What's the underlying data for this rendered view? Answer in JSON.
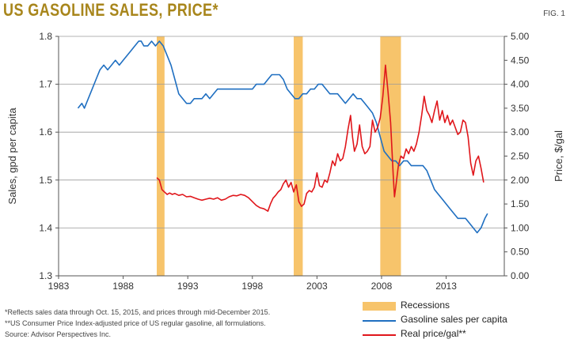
{
  "header": {
    "title": "US GASOLINE SALES, PRICE*",
    "fig_label": "FIG. 1"
  },
  "chart_data": {
    "type": "line",
    "title": "US GASOLINE SALES, PRICE*",
    "xlabel": "",
    "ylabel": "Sales, gpd per capita",
    "y2label": "Price, $/gal",
    "xlim": [
      1983,
      2017.5
    ],
    "ylim": [
      1.3,
      1.8
    ],
    "y2lim": [
      0,
      5
    ],
    "x_ticks": [
      1983,
      1988,
      1993,
      1998,
      2003,
      2008,
      2013
    ],
    "y_ticks": [
      "1.3",
      "1.4",
      "1.5",
      "1.6",
      "1.7",
      "1.8"
    ],
    "y2_ticks": [
      "0.00",
      "0.50",
      "1.00",
      "1.50",
      "2.00",
      "2.50",
      "3.00",
      "3.50",
      "4.00",
      "4.50",
      "5.00"
    ],
    "grid": true,
    "recessions": [
      [
        1990.6,
        1991.2
      ],
      [
        2001.2,
        2001.9
      ],
      [
        2007.9,
        2009.5
      ]
    ],
    "series": [
      {
        "name": "Gasoline sales per capita",
        "axis": "left",
        "color": "#1f6fc1",
        "x": [
          1984.5,
          1984.8,
          1985.0,
          1985.3,
          1985.6,
          1985.9,
          1986.2,
          1986.5,
          1986.8,
          1987.1,
          1987.4,
          1987.7,
          1988.0,
          1988.3,
          1988.6,
          1988.9,
          1989.2,
          1989.4,
          1989.6,
          1989.9,
          1990.2,
          1990.5,
          1990.8,
          1991.1,
          1991.4,
          1991.7,
          1992.0,
          1992.3,
          1992.6,
          1992.9,
          1993.2,
          1993.5,
          1993.8,
          1994.1,
          1994.4,
          1994.7,
          1995.0,
          1995.3,
          1995.6,
          1995.9,
          1996.2,
          1996.5,
          1996.8,
          1997.1,
          1997.4,
          1997.7,
          1998.0,
          1998.3,
          1998.6,
          1998.9,
          1999.2,
          1999.5,
          1999.8,
          2000.1,
          2000.4,
          2000.7,
          2001.0,
          2001.3,
          2001.6,
          2001.9,
          2002.2,
          2002.5,
          2002.8,
          2003.1,
          2003.4,
          2003.7,
          2004.0,
          2004.3,
          2004.6,
          2004.9,
          2005.2,
          2005.5,
          2005.8,
          2006.1,
          2006.4,
          2006.7,
          2007.0,
          2007.3,
          2007.6,
          2007.9,
          2008.2,
          2008.5,
          2008.8,
          2009.1,
          2009.4,
          2009.7,
          2010.0,
          2010.3,
          2010.6,
          2010.9,
          2011.2,
          2011.5,
          2011.8,
          2012.1,
          2012.4,
          2012.7,
          2013.0,
          2013.3,
          2013.6,
          2013.9,
          2014.2,
          2014.5,
          2014.8,
          2015.1,
          2015.4,
          2015.7,
          2016.0,
          2016.2
        ],
        "values": [
          1.65,
          1.66,
          1.65,
          1.67,
          1.69,
          1.71,
          1.73,
          1.74,
          1.73,
          1.74,
          1.75,
          1.74,
          1.75,
          1.76,
          1.77,
          1.78,
          1.79,
          1.79,
          1.78,
          1.78,
          1.79,
          1.78,
          1.79,
          1.78,
          1.76,
          1.74,
          1.71,
          1.68,
          1.67,
          1.66,
          1.66,
          1.67,
          1.67,
          1.67,
          1.68,
          1.67,
          1.68,
          1.69,
          1.69,
          1.69,
          1.69,
          1.69,
          1.69,
          1.69,
          1.69,
          1.69,
          1.69,
          1.7,
          1.7,
          1.7,
          1.71,
          1.72,
          1.72,
          1.72,
          1.71,
          1.69,
          1.68,
          1.67,
          1.67,
          1.68,
          1.68,
          1.69,
          1.69,
          1.7,
          1.7,
          1.69,
          1.68,
          1.68,
          1.68,
          1.67,
          1.66,
          1.67,
          1.68,
          1.67,
          1.67,
          1.66,
          1.65,
          1.64,
          1.62,
          1.59,
          1.56,
          1.55,
          1.54,
          1.54,
          1.53,
          1.54,
          1.54,
          1.53,
          1.53,
          1.53,
          1.53,
          1.52,
          1.5,
          1.48,
          1.47,
          1.46,
          1.45,
          1.44,
          1.43,
          1.42,
          1.42,
          1.42,
          1.41,
          1.4,
          1.39,
          1.4,
          1.42,
          1.43
        ]
      },
      {
        "name": "Real price/gal**",
        "axis": "right",
        "color": "#e0161b",
        "x": [
          1990.6,
          1990.8,
          1991.0,
          1991.2,
          1991.4,
          1991.6,
          1991.8,
          1992.0,
          1992.3,
          1992.6,
          1992.9,
          1993.2,
          1993.5,
          1993.8,
          1994.1,
          1994.4,
          1994.7,
          1995.0,
          1995.3,
          1995.6,
          1995.9,
          1996.2,
          1996.5,
          1996.8,
          1997.1,
          1997.4,
          1997.7,
          1998.0,
          1998.3,
          1998.6,
          1998.9,
          1999.2,
          1999.4,
          1999.6,
          1999.8,
          2000.0,
          2000.2,
          2000.4,
          2000.6,
          2000.8,
          2001.0,
          2001.2,
          2001.4,
          2001.6,
          2001.8,
          2002.0,
          2002.2,
          2002.4,
          2002.6,
          2002.8,
          2003.0,
          2003.2,
          2003.4,
          2003.6,
          2003.8,
          2004.0,
          2004.2,
          2004.4,
          2004.6,
          2004.8,
          2005.0,
          2005.2,
          2005.4,
          2005.6,
          2005.75,
          2005.9,
          2006.1,
          2006.3,
          2006.5,
          2006.7,
          2006.9,
          2007.1,
          2007.3,
          2007.5,
          2007.7,
          2007.9,
          2008.1,
          2008.3,
          2008.5,
          2008.7,
          2008.9,
          2009.0,
          2009.1,
          2009.3,
          2009.5,
          2009.7,
          2009.9,
          2010.1,
          2010.3,
          2010.5,
          2010.7,
          2010.9,
          2011.1,
          2011.3,
          2011.5,
          2011.7,
          2011.9,
          2012.1,
          2012.3,
          2012.5,
          2012.7,
          2012.9,
          2013.1,
          2013.3,
          2013.5,
          2013.7,
          2013.9,
          2014.1,
          2014.3,
          2014.5,
          2014.7,
          2014.9,
          2015.1,
          2015.3,
          2015.5,
          2015.7,
          2015.9
        ],
        "values": [
          2.05,
          2.0,
          1.8,
          1.75,
          1.7,
          1.73,
          1.7,
          1.72,
          1.68,
          1.7,
          1.65,
          1.66,
          1.63,
          1.6,
          1.58,
          1.6,
          1.62,
          1.6,
          1.63,
          1.58,
          1.6,
          1.65,
          1.68,
          1.67,
          1.7,
          1.68,
          1.63,
          1.55,
          1.47,
          1.42,
          1.4,
          1.35,
          1.5,
          1.62,
          1.68,
          1.75,
          1.8,
          1.92,
          2.0,
          1.85,
          1.95,
          1.75,
          1.9,
          1.55,
          1.45,
          1.5,
          1.72,
          1.78,
          1.75,
          1.85,
          2.15,
          1.88,
          1.85,
          2.0,
          1.95,
          2.15,
          2.4,
          2.3,
          2.55,
          2.4,
          2.45,
          2.7,
          3.05,
          3.35,
          2.9,
          2.6,
          2.75,
          3.15,
          2.7,
          2.55,
          2.6,
          2.7,
          3.25,
          3.0,
          3.1,
          3.3,
          3.75,
          4.4,
          3.85,
          3.2,
          2.1,
          1.65,
          1.85,
          2.3,
          2.5,
          2.45,
          2.65,
          2.55,
          2.7,
          2.6,
          2.75,
          3.0,
          3.35,
          3.75,
          3.45,
          3.35,
          3.2,
          3.45,
          3.65,
          3.25,
          3.45,
          3.2,
          3.35,
          3.15,
          3.25,
          3.1,
          2.95,
          3.0,
          3.25,
          3.2,
          2.9,
          2.35,
          2.1,
          2.4,
          2.5,
          2.25,
          1.95
        ]
      }
    ]
  },
  "legend": {
    "recessions": "Recessions",
    "sales": "Gasoline sales per capita",
    "price": "Real price/gal**"
  },
  "colors": {
    "sales": "#1f6fc1",
    "price": "#e0161b",
    "recession": "#f7c46b",
    "title": "#a8861c"
  },
  "footnotes": {
    "line1": "*Reflects sales data through Oct. 15, 2015, and prices through mid-December 2015.",
    "line2": "**US Consumer Price Index-adjusted price of US regular gasoline, all formulations.",
    "line3": "Source: Advisor Perspectives Inc."
  }
}
